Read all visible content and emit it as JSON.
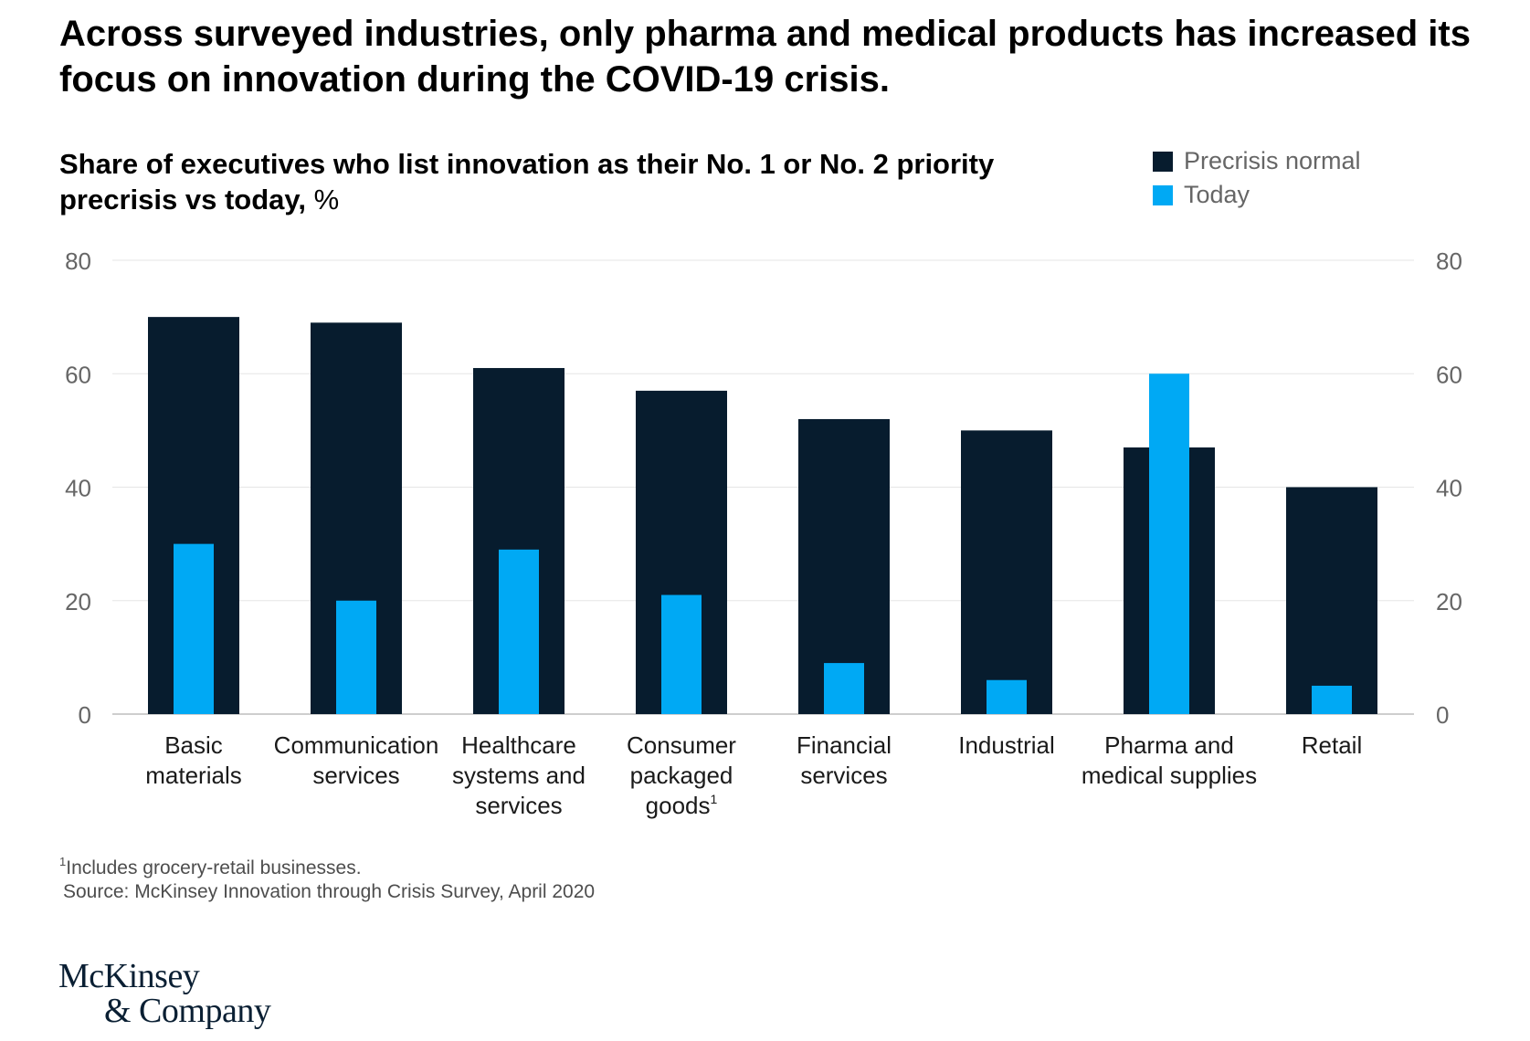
{
  "headline": "Across surveyed industries, only pharma and medical products has increased its focus on innovation during the COVID-19 crisis.",
  "subtitle": {
    "main": "Share of executives who list innovation as their No. 1 or No. 2 priority precrisis vs today,",
    "unit": "%"
  },
  "colors": {
    "precrisis": "#071c2e",
    "today": "#00a9f4",
    "grid": "#e6e6e6",
    "axis": "#bdbdbd"
  },
  "legend": [
    {
      "label": "Precrisis normal",
      "color": "#071c2e"
    },
    {
      "label": "Today",
      "color": "#00a9f4"
    }
  ],
  "chart_data": {
    "type": "bar",
    "title": "Share of executives who list innovation as their No. 1 or No. 2 priority precrisis vs today, %",
    "xlabel": "",
    "ylabel": "%",
    "ylim": [
      0,
      80
    ],
    "yticks": [
      0,
      20,
      40,
      60,
      80
    ],
    "grid": true,
    "legend_position": "top-right",
    "categories": [
      [
        "Basic",
        "materials"
      ],
      [
        "Communication",
        "services"
      ],
      [
        "Healthcare",
        "systems and",
        "services"
      ],
      [
        "Consumer",
        "packaged",
        "goods"
      ],
      [
        "Financial",
        "services"
      ],
      [
        "Industrial"
      ],
      [
        "Pharma and",
        "medical supplies"
      ],
      [
        "Retail"
      ]
    ],
    "category_footnotes": [
      "",
      "",
      "",
      "1",
      "",
      "",
      "",
      ""
    ],
    "series": [
      {
        "name": "Precrisis normal",
        "values": [
          70,
          69,
          61,
          57,
          52,
          50,
          47,
          40
        ]
      },
      {
        "name": "Today",
        "values": [
          30,
          20,
          29,
          21,
          9,
          6,
          60,
          5
        ]
      }
    ]
  },
  "footnote": {
    "marker": "1",
    "text": "Includes grocery-retail businesses."
  },
  "source": "Source: McKinsey Innovation through Crisis Survey, April 2020",
  "logo": {
    "line1": "McKinsey",
    "line2": "& Company"
  }
}
